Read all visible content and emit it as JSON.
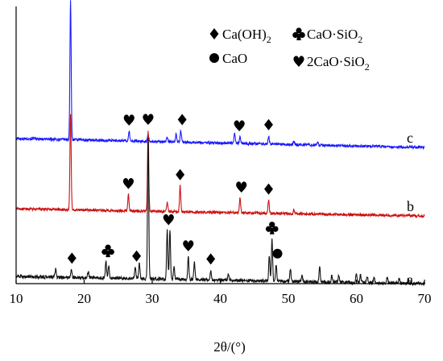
{
  "chart_data": {
    "type": "line",
    "title": "",
    "xlabel": "2θ/(°)",
    "ylabel": "",
    "xlim": [
      10,
      70
    ],
    "x_ticks": [
      10,
      20,
      30,
      40,
      50,
      60,
      70
    ],
    "x_tick_labels": [
      "10",
      "20",
      "30",
      "40",
      "50",
      "60",
      "70"
    ],
    "y_ticks_shown": false,
    "grid": false,
    "legend_position": "top-right",
    "legend": [
      {
        "symbol": "diamond",
        "label": "Ca(OH)",
        "sub": "2"
      },
      {
        "symbol": "club",
        "label": "CaO·SiO",
        "sub": "2"
      },
      {
        "symbol": "circle",
        "label": "CaO",
        "sub": ""
      },
      {
        "symbol": "heart",
        "label": "2CaO·SiO",
        "sub": "2"
      }
    ],
    "series": [
      {
        "name": "c",
        "color": "#1a1aff",
        "baseline": [
          [
            10,
            0.28
          ],
          [
            70,
            0.0
          ]
        ],
        "noise": 0.04,
        "peaks": [
          [
            18.0,
            4.3
          ],
          [
            26.6,
            0.3
          ],
          [
            29.4,
            0.2
          ],
          [
            32.2,
            0.15
          ],
          [
            33.5,
            0.25
          ],
          [
            34.2,
            0.35
          ],
          [
            42.1,
            0.3
          ],
          [
            42.9,
            0.2
          ],
          [
            47.1,
            0.25
          ],
          [
            50.8,
            0.1
          ],
          [
            54.3,
            0.08
          ]
        ],
        "markers": [
          {
            "symbol": "diamond",
            "x": 18.0
          },
          {
            "symbol": "heart",
            "x": 26.6
          },
          {
            "symbol": "diamond",
            "x": 34.4
          },
          {
            "symbol": "heart",
            "x": 42.8
          },
          {
            "symbol": "diamond",
            "x": 47.1
          }
        ]
      },
      {
        "name": "b",
        "color": "#cc1111",
        "baseline": [
          [
            10,
            0.22
          ],
          [
            70,
            0.0
          ]
        ],
        "noise": 0.04,
        "peaks": [
          [
            18.0,
            3.0
          ],
          [
            26.5,
            0.5
          ],
          [
            29.4,
            2.5
          ],
          [
            32.2,
            0.3
          ],
          [
            34.1,
            0.8
          ],
          [
            42.9,
            0.45
          ],
          [
            47.1,
            0.4
          ],
          [
            50.8,
            0.12
          ]
        ],
        "markers": [
          {
            "symbol": "heart",
            "x": 26.5
          },
          {
            "symbol": "heart",
            "x": 29.4
          },
          {
            "symbol": "diamond",
            "x": 34.1
          },
          {
            "symbol": "heart",
            "x": 43.1
          },
          {
            "symbol": "diamond",
            "x": 47.1
          }
        ]
      },
      {
        "name": "a",
        "color": "#111111",
        "baseline": [
          [
            10,
            0.22
          ],
          [
            70,
            0.0
          ]
        ],
        "noise": 0.05,
        "peaks": [
          [
            15.8,
            0.25
          ],
          [
            18.1,
            0.25
          ],
          [
            20.6,
            0.2
          ],
          [
            23.2,
            0.5
          ],
          [
            23.6,
            0.4
          ],
          [
            27.5,
            0.35
          ],
          [
            28.1,
            0.5
          ],
          [
            29.4,
            4.4
          ],
          [
            32.2,
            1.5
          ],
          [
            32.6,
            1.5
          ],
          [
            33.2,
            0.4
          ],
          [
            35.3,
            0.7
          ],
          [
            36.2,
            0.55
          ],
          [
            38.6,
            0.3
          ],
          [
            41.2,
            0.18
          ],
          [
            47.2,
            0.8
          ],
          [
            47.6,
            1.3
          ],
          [
            48.2,
            0.5
          ],
          [
            50.3,
            0.4
          ],
          [
            52.0,
            0.2
          ],
          [
            54.6,
            0.45
          ],
          [
            56.4,
            0.2
          ],
          [
            57.4,
            0.2
          ],
          [
            60.0,
            0.3
          ],
          [
            60.6,
            0.25
          ],
          [
            61.6,
            0.2
          ],
          [
            62.6,
            0.15
          ],
          [
            64.5,
            0.2
          ],
          [
            66.3,
            0.15
          ],
          [
            67.6,
            0.15
          ]
        ],
        "markers": [
          {
            "symbol": "diamond",
            "x": 18.2
          },
          {
            "symbol": "club",
            "x": 23.5
          },
          {
            "symbol": "diamond",
            "x": 27.7
          },
          {
            "symbol": "heart",
            "x": 32.4
          },
          {
            "symbol": "heart",
            "x": 35.3
          },
          {
            "symbol": "diamond",
            "x": 38.6
          },
          {
            "symbol": "club",
            "x": 47.6
          },
          {
            "symbol": "circle",
            "x": 48.4
          }
        ]
      }
    ],
    "series_labels": [
      {
        "text": "c",
        "series": "c"
      },
      {
        "text": "b",
        "series": "b"
      },
      {
        "text": "a",
        "series": "a"
      }
    ]
  }
}
